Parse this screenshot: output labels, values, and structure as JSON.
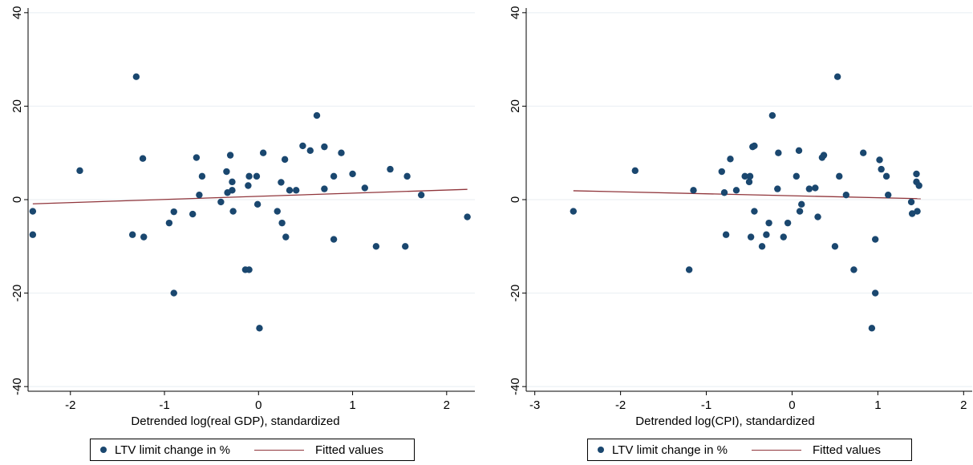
{
  "chart_data": [
    {
      "type": "scatter",
      "title": "",
      "xlabel": "Detrended log(real GDP), standardized",
      "ylabel": "",
      "xlim": [
        -2.45,
        2.3
      ],
      "ylim": [
        -41,
        41
      ],
      "xticks": [
        "-2",
        "-1",
        "0",
        "1",
        "2"
      ],
      "xtick_values": [
        -2,
        -1,
        0,
        1,
        2
      ],
      "yticks": [
        "-40",
        "-20",
        "0",
        "20",
        "40"
      ],
      "ytick_values": [
        -40,
        -20,
        0,
        20,
        40
      ],
      "grid": true,
      "legend_position": "bottom",
      "colors": {
        "points": "#1a476f",
        "fit": "#90353b",
        "grid": "#e8eef2"
      },
      "series": [
        {
          "name": "LTV limit change in %",
          "kind": "scatter",
          "points": [
            [
              -2.4,
              -2.5
            ],
            [
              -2.4,
              -7.5
            ],
            [
              -1.9,
              6.2
            ],
            [
              -1.3,
              26.3
            ],
            [
              -1.34,
              -7.5
            ],
            [
              -1.23,
              8.8
            ],
            [
              -1.22,
              -8
            ],
            [
              -0.95,
              -5
            ],
            [
              -0.9,
              -2.6
            ],
            [
              -0.9,
              -20
            ],
            [
              -0.7,
              -3.1
            ],
            [
              -0.66,
              9
            ],
            [
              -0.63,
              1
            ],
            [
              -0.6,
              5
            ],
            [
              -0.4,
              -0.5
            ],
            [
              -0.34,
              6
            ],
            [
              -0.33,
              1.5
            ],
            [
              -0.3,
              9.5
            ],
            [
              -0.28,
              3.8
            ],
            [
              -0.28,
              2
            ],
            [
              -0.27,
              -2.5
            ],
            [
              -0.14,
              -15
            ],
            [
              -0.11,
              3
            ],
            [
              -0.1,
              5
            ],
            [
              -0.1,
              -15
            ],
            [
              -0.02,
              5
            ],
            [
              -0.01,
              -1
            ],
            [
              0.01,
              -27.5
            ],
            [
              0.05,
              10
            ],
            [
              0.2,
              -2.5
            ],
            [
              0.24,
              3.7
            ],
            [
              0.25,
              -5
            ],
            [
              0.28,
              8.6
            ],
            [
              0.29,
              -8
            ],
            [
              0.33,
              2
            ],
            [
              0.4,
              2
            ],
            [
              0.47,
              11.5
            ],
            [
              0.55,
              10.5
            ],
            [
              0.62,
              18
            ],
            [
              0.7,
              11.3
            ],
            [
              0.7,
              2.3
            ],
            [
              0.8,
              5
            ],
            [
              0.8,
              -8.5
            ],
            [
              0.88,
              10
            ],
            [
              1.0,
              5.5
            ],
            [
              1.13,
              2.5
            ],
            [
              1.25,
              -10
            ],
            [
              1.4,
              6.5
            ],
            [
              1.56,
              -10
            ],
            [
              1.58,
              5
            ],
            [
              1.73,
              1
            ],
            [
              2.22,
              -3.7
            ]
          ]
        },
        {
          "name": "Fitted values",
          "kind": "line",
          "points": [
            [
              -2.4,
              -0.9
            ],
            [
              2.22,
              2.2
            ]
          ]
        }
      ]
    },
    {
      "type": "scatter",
      "title": "",
      "xlabel": "Detrended log(CPI), standardized",
      "ylabel": "",
      "xlim": [
        -3.1,
        2.1
      ],
      "ylim": [
        -41,
        41
      ],
      "xticks": [
        "-3",
        "-2",
        "-1",
        "0",
        "1",
        "2"
      ],
      "xtick_values": [
        -3,
        -2,
        -1,
        0,
        1,
        2
      ],
      "yticks": [
        "-40",
        "-20",
        "0",
        "20",
        "40"
      ],
      "ytick_values": [
        -40,
        -20,
        0,
        20,
        40
      ],
      "grid": true,
      "legend_position": "bottom",
      "colors": {
        "points": "#1a476f",
        "fit": "#90353b",
        "grid": "#e8eef2"
      },
      "series": [
        {
          "name": "LTV limit change in %",
          "kind": "scatter",
          "points": [
            [
              -2.55,
              -2.5
            ],
            [
              -1.83,
              6.2
            ],
            [
              -1.2,
              -15
            ],
            [
              -1.15,
              2
            ],
            [
              -0.82,
              6
            ],
            [
              -0.79,
              1.5
            ],
            [
              -0.77,
              -7.5
            ],
            [
              -0.72,
              8.7
            ],
            [
              -0.65,
              2
            ],
            [
              -0.55,
              5
            ],
            [
              -0.5,
              3.8
            ],
            [
              -0.49,
              5
            ],
            [
              -0.48,
              -8
            ],
            [
              -0.46,
              11.3
            ],
            [
              -0.44,
              11.5
            ],
            [
              -0.44,
              -2.5
            ],
            [
              -0.35,
              -10
            ],
            [
              -0.3,
              -7.5
            ],
            [
              -0.27,
              -5
            ],
            [
              -0.23,
              18
            ],
            [
              -0.17,
              2.3
            ],
            [
              -0.16,
              10
            ],
            [
              -0.1,
              -8
            ],
            [
              -0.05,
              -5
            ],
            [
              0.05,
              5
            ],
            [
              0.08,
              10.5
            ],
            [
              0.09,
              -2.5
            ],
            [
              0.11,
              -1
            ],
            [
              0.2,
              2.3
            ],
            [
              0.27,
              2.5
            ],
            [
              0.3,
              -3.7
            ],
            [
              0.35,
              9
            ],
            [
              0.37,
              9.5
            ],
            [
              0.5,
              -10
            ],
            [
              0.53,
              26.3
            ],
            [
              0.55,
              5
            ],
            [
              0.63,
              1
            ],
            [
              0.72,
              -15
            ],
            [
              0.83,
              10
            ],
            [
              0.97,
              -8.5
            ],
            [
              0.97,
              -20
            ],
            [
              0.93,
              -27.5
            ],
            [
              1.02,
              8.5
            ],
            [
              1.04,
              6.5
            ],
            [
              1.1,
              5
            ],
            [
              1.12,
              1
            ],
            [
              1.39,
              -0.5
            ],
            [
              1.4,
              -3
            ],
            [
              1.45,
              5.5
            ],
            [
              1.45,
              3.8
            ],
            [
              1.46,
              -2.5
            ],
            [
              1.48,
              3
            ]
          ]
        },
        {
          "name": "Fitted values",
          "kind": "line",
          "points": [
            [
              -2.55,
              1.9
            ],
            [
              1.5,
              0.2
            ]
          ]
        }
      ]
    }
  ]
}
